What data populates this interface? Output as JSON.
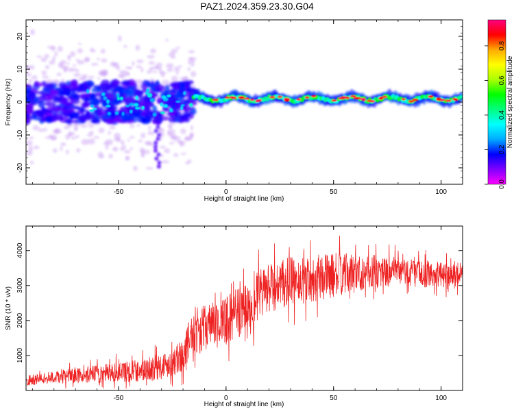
{
  "title": "PAZ1.2024.359.23.30.G04",
  "chart_data": [
    {
      "type": "heatmap",
      "xlabel": "Height of straight line (km)",
      "ylabel": "Frequency (Hz)",
      "xlim": [
        -93,
        110
      ],
      "ylim": [
        -25,
        25
      ],
      "xticks": [
        -50,
        0,
        50,
        100
      ],
      "yticks": [
        -20,
        -10,
        0,
        10,
        20
      ],
      "colorbar": {
        "label": "Normalized spectral amplitude",
        "range": [
          0,
          0.95
        ],
        "ticks": [
          0.0,
          0.2,
          0.4,
          0.6,
          0.8
        ],
        "colormap": [
          "#ff00ff",
          "#8000ff",
          "#0000ff",
          "#00aaff",
          "#00ffff",
          "#00ff80",
          "#00ff00",
          "#aaff00",
          "#ffff00",
          "#ffaa00",
          "#ff0000",
          "#ff0080"
        ]
      },
      "features": {
        "diffuse_region_x": [
          -93,
          -15
        ],
        "diffuse_frequency_range": [
          -6,
          6
        ],
        "ridge_x": [
          -15,
          110
        ],
        "ridge_frequency": 1
      },
      "grid": false
    },
    {
      "type": "line",
      "xlabel": "Height of straight line (km)",
      "ylabel": "SNR (10 * v/v)",
      "xlim": [
        -93,
        110
      ],
      "ylim": [
        0,
        4700
      ],
      "xticks": [
        -50,
        0,
        50,
        100
      ],
      "yticks": [
        1000,
        2000,
        3000,
        4000
      ],
      "series": [
        {
          "color": "#ee2222",
          "x": [
            -93,
            -85,
            -75,
            -65,
            -55,
            -45,
            -35,
            -25,
            -20,
            -17,
            -15,
            -10,
            -5,
            0,
            5,
            10,
            15,
            20,
            25,
            30,
            40,
            50,
            60,
            70,
            80,
            90,
            100,
            110
          ],
          "y": [
            250,
            350,
            400,
            450,
            500,
            550,
            600,
            800,
            1000,
            1500,
            1700,
            1800,
            1900,
            2000,
            2200,
            2400,
            2700,
            2900,
            3000,
            3100,
            3200,
            3300,
            3350,
            3400,
            3400,
            3350,
            3300,
            3350
          ],
          "noise": [
            150,
            200,
            250,
            300,
            350,
            400,
            450,
            500,
            600,
            700,
            800,
            800,
            800,
            900,
            900,
            900,
            900,
            900,
            900,
            900,
            850,
            800,
            700,
            600,
            500,
            500,
            450,
            400
          ]
        }
      ],
      "grid": false
    }
  ]
}
